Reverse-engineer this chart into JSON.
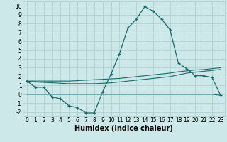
{
  "xlabel": "Humidex (Indice chaleur)",
  "bg_color": "#cce8e8",
  "grid_color": "#b5d5d5",
  "line_color": "#1a6b6b",
  "xlim": [
    -0.5,
    23.5
  ],
  "ylim": [
    -2.5,
    10.5
  ],
  "xticks": [
    0,
    1,
    2,
    3,
    4,
    5,
    6,
    7,
    8,
    9,
    10,
    11,
    12,
    13,
    14,
    15,
    16,
    17,
    18,
    19,
    20,
    21,
    22,
    23
  ],
  "yticks": [
    -2,
    -1,
    0,
    1,
    2,
    3,
    4,
    5,
    6,
    7,
    8,
    9,
    10
  ],
  "main_y": [
    1.5,
    0.8,
    0.8,
    -0.3,
    -0.5,
    -1.3,
    -1.5,
    -2.1,
    -2.1,
    0.3,
    2.3,
    4.6,
    7.5,
    8.5,
    9.9,
    9.4,
    8.5,
    7.3,
    3.5,
    2.9,
    2.1,
    2.1,
    1.9,
    -0.1
  ],
  "line1_y": [
    1.5,
    1.4,
    1.35,
    1.3,
    1.25,
    1.2,
    1.2,
    1.2,
    1.2,
    1.25,
    1.3,
    1.4,
    1.5,
    1.6,
    1.7,
    1.8,
    1.9,
    2.0,
    2.2,
    2.4,
    2.5,
    2.6,
    2.7,
    2.8
  ],
  "line2_y": [
    1.5,
    1.5,
    1.5,
    1.5,
    1.5,
    1.5,
    1.55,
    1.6,
    1.65,
    1.7,
    1.75,
    1.8,
    1.9,
    2.0,
    2.1,
    2.2,
    2.3,
    2.4,
    2.55,
    2.65,
    2.75,
    2.8,
    2.9,
    3.0
  ],
  "line3_y": [
    0.0,
    0.0,
    0.0,
    0.0,
    0.0,
    0.0,
    0.0,
    0.0,
    0.0,
    0.0,
    0.0,
    0.0,
    0.0,
    0.0,
    0.0,
    0.0,
    0.0,
    0.0,
    0.0,
    0.0,
    0.0,
    0.0,
    0.0,
    -0.1
  ],
  "tick_fontsize": 5.5,
  "xlabel_fontsize": 7
}
